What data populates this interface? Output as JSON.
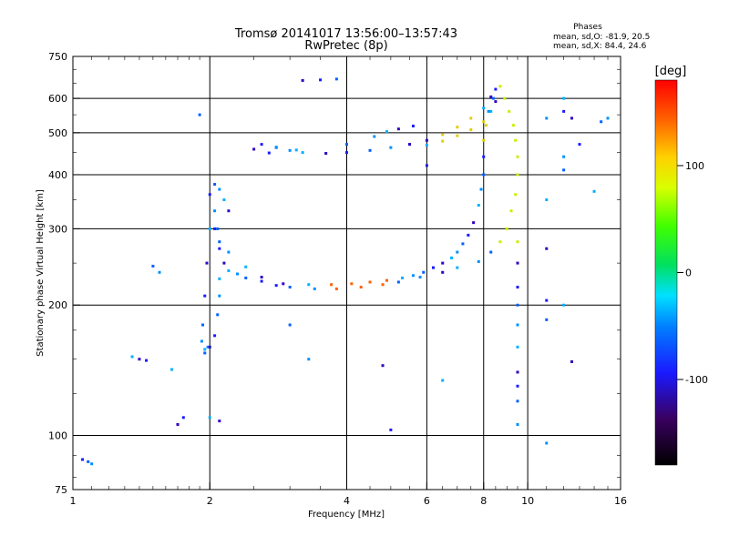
{
  "chart_data": {
    "type": "scatter",
    "title": "Tromsø 20141017 13:56:00–13:57:43",
    "subtitle": "RwPretec (8p)",
    "xlabel": "Frequency [MHz]",
    "ylabel": "Stationary phase Virtual Height [km]",
    "x_scale": "log",
    "y_scale": "log",
    "xlim": [
      1,
      16
    ],
    "ylim": [
      75,
      750
    ],
    "x_ticks": [
      1,
      2,
      4,
      6,
      8,
      10,
      16
    ],
    "x_tick_labels": [
      "1",
      "2",
      "4",
      "6",
      "8",
      "10",
      "16"
    ],
    "y_ticks": [
      75,
      100,
      200,
      300,
      400,
      500,
      600,
      750
    ],
    "y_tick_labels": [
      "75",
      "100",
      "200",
      "300",
      "400",
      "500",
      "600",
      "750"
    ],
    "grid": true,
    "stats": {
      "heading": "Phases",
      "o_line": "mean, sd,O: -81.9, 20.5",
      "x_line": "mean, sd,X:  84.4, 24.6"
    },
    "colorbar": {
      "label": "[deg]",
      "range": [
        -180,
        180
      ],
      "ticks": [
        100,
        0,
        -100
      ],
      "tick_labels": [
        "100",
        "0",
        "-100"
      ]
    },
    "series": [
      {
        "points": [
          [
            1.05,
            88
          ],
          [
            1.08,
            87
          ],
          [
            1.1,
            86
          ],
          [
            1.35,
            152
          ],
          [
            1.4,
            150
          ],
          [
            1.45,
            149
          ],
          [
            1.5,
            246
          ],
          [
            1.55,
            238
          ],
          [
            1.65,
            142
          ],
          [
            1.7,
            106
          ],
          [
            1.75,
            110
          ],
          [
            1.95,
            155
          ],
          [
            1.98,
            160
          ],
          [
            2.0,
            110
          ],
          [
            2.1,
            108
          ],
          [
            2.0,
            360
          ],
          [
            2.05,
            380
          ],
          [
            2.1,
            370
          ],
          [
            2.15,
            350
          ],
          [
            2.2,
            330
          ],
          [
            2.05,
            300
          ],
          [
            2.1,
            280
          ],
          [
            2.2,
            265
          ],
          [
            2.4,
            245
          ],
          [
            2.6,
            232
          ],
          [
            2.8,
            222
          ],
          [
            3.0,
            220
          ],
          [
            3.4,
            218
          ],
          [
            3.8,
            218
          ],
          [
            4.3,
            220
          ],
          [
            4.8,
            223
          ],
          [
            5.2,
            226
          ],
          [
            5.8,
            232
          ],
          [
            6.0,
            468
          ],
          [
            6.5,
            478
          ],
          [
            7.0,
            492
          ],
          [
            7.5,
            508
          ],
          [
            8.0,
            530
          ],
          [
            8.3,
            560
          ],
          [
            8.5,
            590
          ],
          [
            8.7,
            640
          ],
          [
            8.9,
            600
          ],
          [
            9.1,
            560
          ],
          [
            9.3,
            520
          ],
          [
            9.4,
            480
          ],
          [
            9.5,
            440
          ],
          [
            9.5,
            400
          ],
          [
            9.4,
            360
          ],
          [
            9.2,
            330
          ],
          [
            9.0,
            300
          ],
          [
            8.7,
            280
          ],
          [
            8.3,
            265
          ],
          [
            7.8,
            252
          ],
          [
            7.0,
            244
          ],
          [
            6.5,
            238
          ],
          [
            2.6,
            470
          ],
          [
            2.8,
            462
          ],
          [
            3.0,
            455
          ],
          [
            3.2,
            450
          ],
          [
            3.6,
            448
          ],
          [
            4.0,
            450
          ],
          [
            4.5,
            455
          ],
          [
            5.0,
            462
          ],
          [
            5.5,
            470
          ],
          [
            6.0,
            480
          ],
          [
            6.5,
            495
          ],
          [
            7.0,
            515
          ],
          [
            7.5,
            540
          ],
          [
            8.0,
            570
          ],
          [
            8.3,
            605
          ],
          [
            8.5,
            630
          ],
          [
            8.4,
            600
          ],
          [
            8.2,
            560
          ],
          [
            8.1,
            520
          ],
          [
            8.0,
            480
          ],
          [
            8.0,
            440
          ],
          [
            8.0,
            400
          ],
          [
            7.9,
            370
          ],
          [
            7.8,
            340
          ],
          [
            7.6,
            310
          ],
          [
            7.4,
            290
          ],
          [
            7.2,
            277
          ],
          [
            7.0,
            265
          ],
          [
            6.8,
            257
          ],
          [
            6.5,
            250
          ],
          [
            6.2,
            244
          ],
          [
            5.9,
            238
          ],
          [
            5.6,
            234
          ],
          [
            5.3,
            231
          ],
          [
            4.9,
            228
          ],
          [
            4.5,
            226
          ],
          [
            4.1,
            224
          ],
          [
            3.7,
            223
          ],
          [
            3.3,
            223
          ],
          [
            2.9,
            224
          ],
          [
            2.6,
            227
          ],
          [
            2.4,
            231
          ],
          [
            2.3,
            236
          ],
          [
            2.2,
            240
          ],
          [
            2.15,
            250
          ],
          [
            2.1,
            270
          ],
          [
            2.08,
            300
          ],
          [
            2.05,
            330
          ],
          [
            2.0,
            300
          ],
          [
            1.97,
            250
          ],
          [
            1.95,
            210
          ],
          [
            1.93,
            180
          ],
          [
            1.92,
            165
          ],
          [
            1.95,
            158
          ],
          [
            2.0,
            160
          ],
          [
            2.05,
            170
          ],
          [
            2.08,
            190
          ],
          [
            2.1,
            210
          ],
          [
            2.1,
            230
          ],
          [
            3.2,
            660
          ],
          [
            3.5,
            662
          ],
          [
            3.8,
            665
          ],
          [
            11.0,
            540
          ],
          [
            12.0,
            600
          ],
          [
            12.5,
            540
          ],
          [
            13.0,
            470
          ],
          [
            14.5,
            530
          ],
          [
            15.0,
            540
          ],
          [
            11.0,
            350
          ],
          [
            11.0,
            270
          ],
          [
            11.0,
            205
          ],
          [
            11.0,
            185
          ],
          [
            11.0,
            96
          ],
          [
            9.5,
            280
          ],
          [
            9.5,
            250
          ],
          [
            9.5,
            220
          ],
          [
            9.5,
            200
          ],
          [
            9.5,
            180
          ],
          [
            9.5,
            160
          ],
          [
            9.5,
            140
          ],
          [
            9.5,
            130
          ],
          [
            9.5,
            120
          ],
          [
            9.5,
            106
          ],
          [
            12.0,
            200
          ],
          [
            12.5,
            148
          ],
          [
            12.0,
            560
          ],
          [
            12.0,
            410
          ],
          [
            12.0,
            440
          ],
          [
            14.0,
            366
          ],
          [
            4.8,
            145
          ],
          [
            5.0,
            103
          ],
          [
            3.0,
            180
          ],
          [
            3.3,
            150
          ],
          [
            6.5,
            134
          ],
          [
            5.5,
            470
          ],
          [
            6.0,
            420
          ],
          [
            4.0,
            470
          ],
          [
            4.6,
            490
          ],
          [
            4.9,
            503
          ],
          [
            5.2,
            510
          ],
          [
            5.6,
            518
          ],
          [
            1.9,
            550
          ],
          [
            2.8,
            463
          ],
          [
            3.1,
            456
          ],
          [
            2.5,
            458
          ],
          [
            2.7,
            449
          ]
        ]
      }
    ]
  }
}
